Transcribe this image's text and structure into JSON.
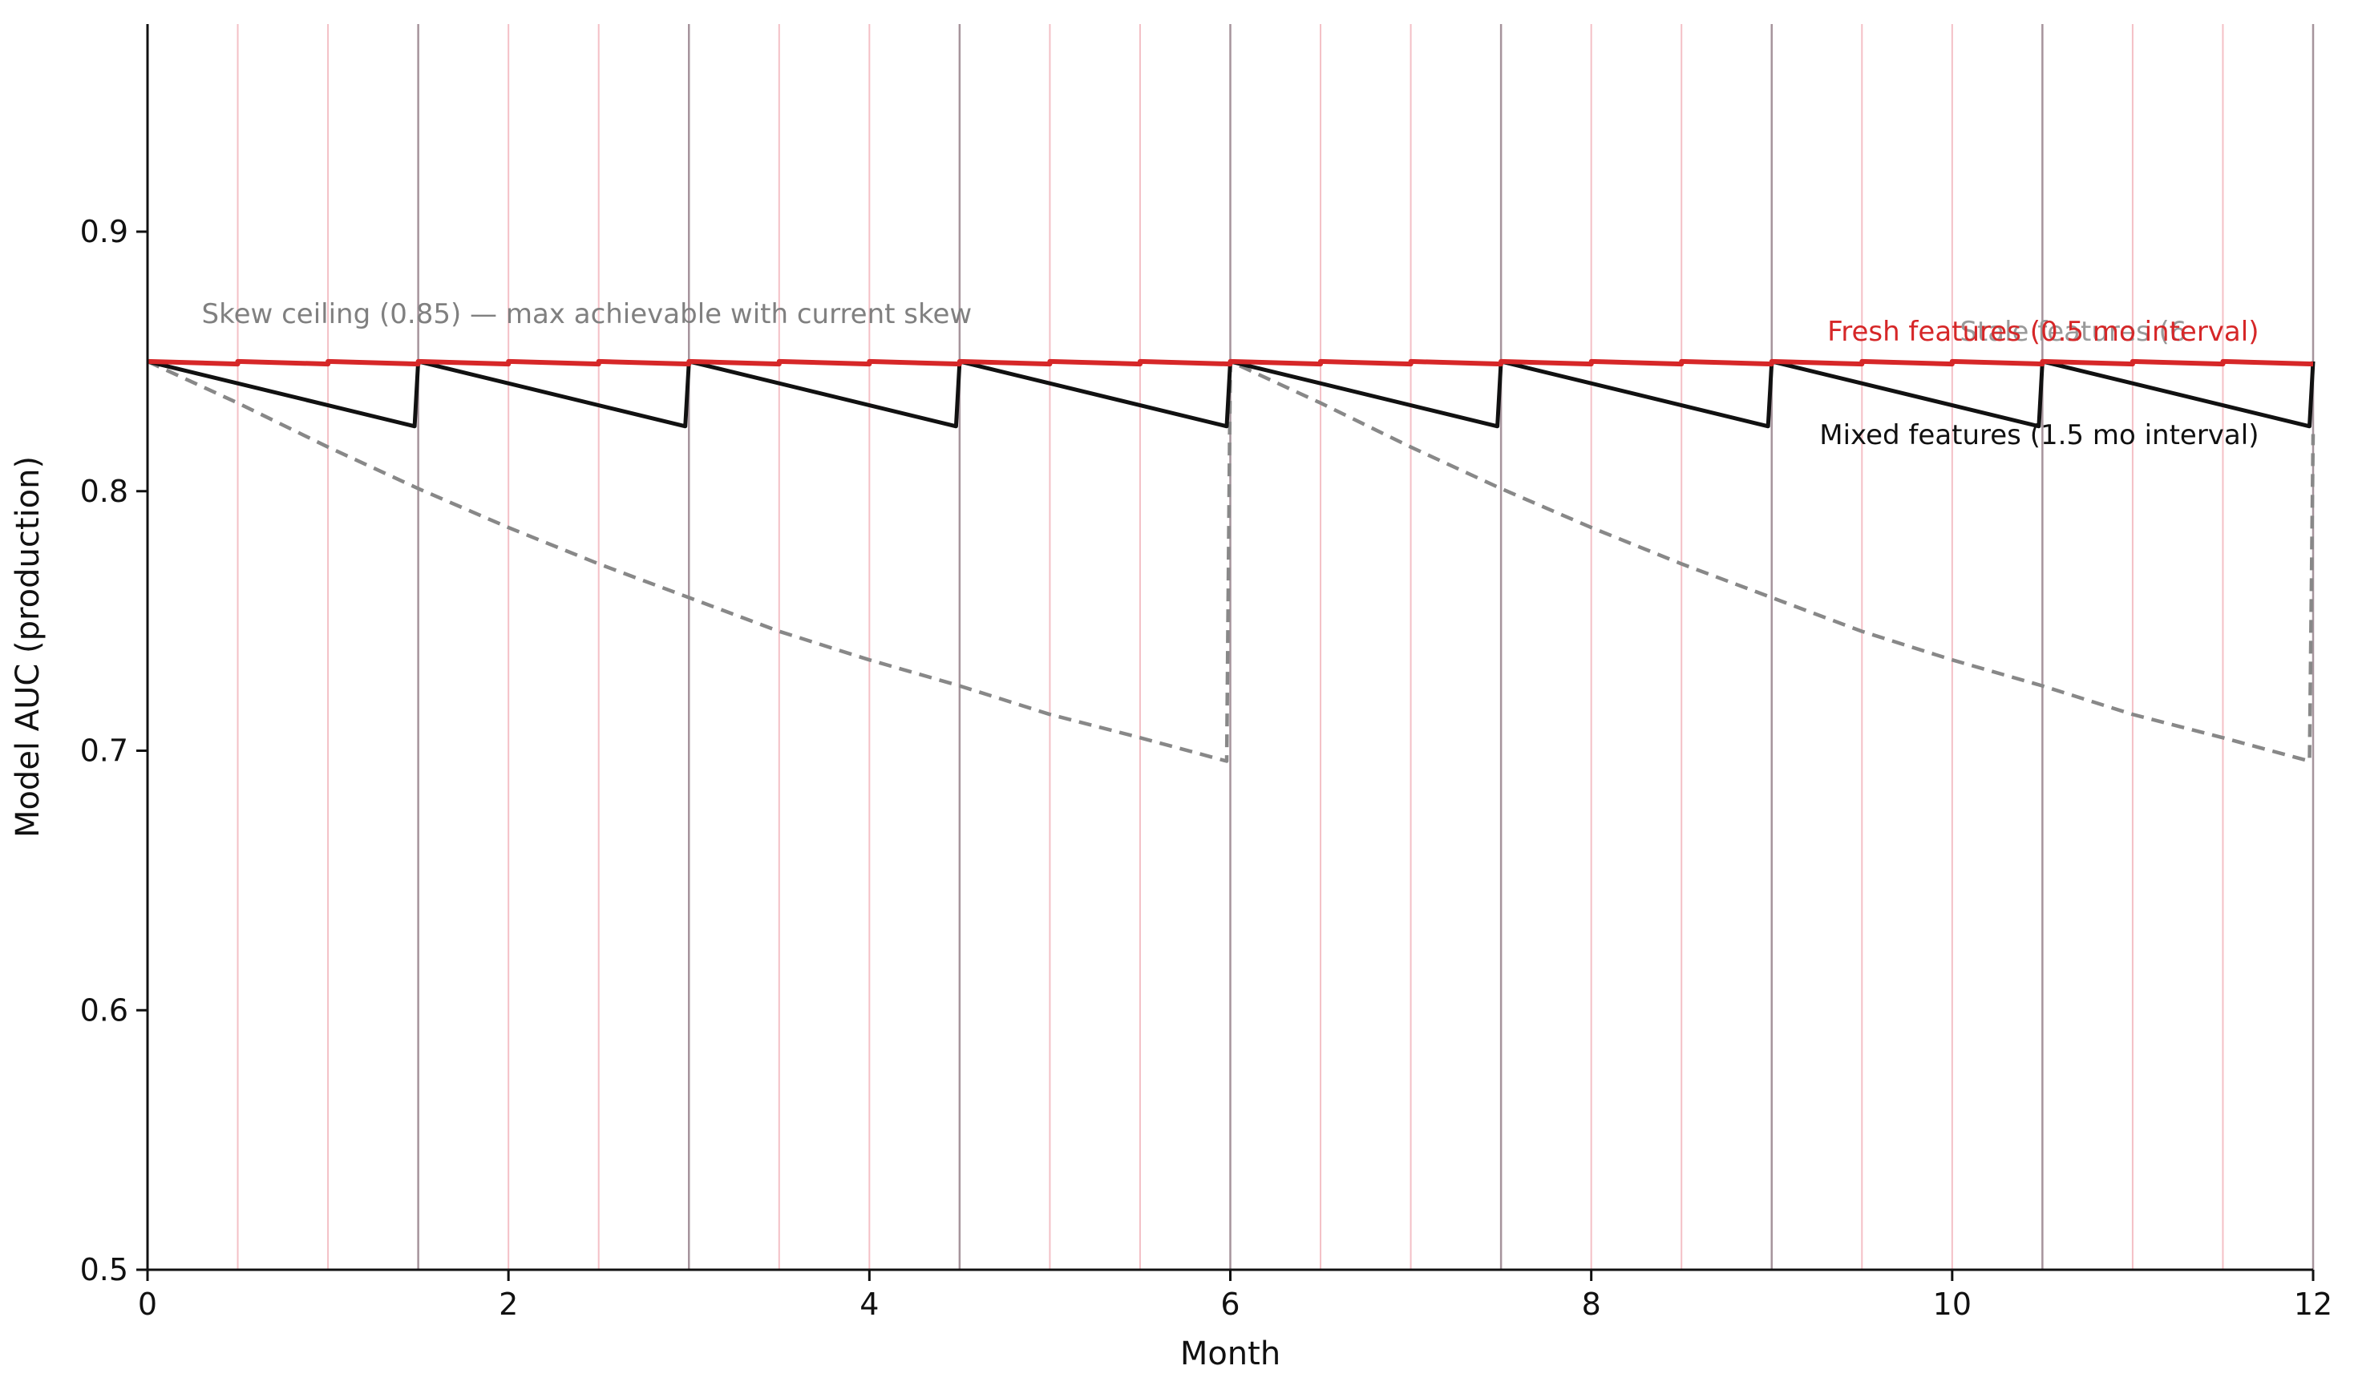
{
  "chart_data": {
    "type": "line",
    "title": "",
    "xlabel": "Month",
    "ylabel": "Model AUC (production)",
    "xlim": [
      0,
      12
    ],
    "ylim": [
      0.5,
      0.98
    ],
    "xticks": [
      0,
      2,
      4,
      6,
      8,
      10,
      12
    ],
    "yticks": [
      0.5,
      0.6,
      0.7,
      0.8,
      0.9
    ],
    "xtick_labels": [
      "0",
      "2",
      "4",
      "6",
      "8",
      "10",
      "12"
    ],
    "ytick_labels": [
      "0.5",
      "0.6",
      "0.7",
      "0.8",
      "0.9"
    ],
    "grid": false,
    "colors": {
      "fresh": "#d62728",
      "mixed": "#111111",
      "stale": "#888888",
      "fresh_retrain_line": "#f4c0c6",
      "mixed_retrain_line": "#a6949c"
    },
    "retrain_lines": {
      "fresh_every_months": 0.5,
      "mixed_every_months": 1.5
    },
    "series": [
      {
        "key": "fresh",
        "style": "solid",
        "x": [
          0,
          0.5,
          0.5,
          1.0,
          1.0,
          1.5,
          1.5,
          2.0,
          2.0,
          2.5,
          2.5,
          3.0,
          3.0,
          3.5,
          3.5,
          4.0,
          4.0,
          4.5,
          4.5,
          5.0,
          5.0,
          5.5,
          5.5,
          6.0,
          6.0,
          6.5,
          6.5,
          7.0,
          7.0,
          7.5,
          7.5,
          8.0,
          8.0,
          8.5,
          8.5,
          9.0,
          9.0,
          9.5,
          9.5,
          10.0,
          10.0,
          10.5,
          10.5,
          11.0,
          11.0,
          11.5,
          11.5,
          12.0
        ],
        "values": [
          0.85,
          0.849,
          0.85,
          0.849,
          0.85,
          0.849,
          0.85,
          0.849,
          0.85,
          0.849,
          0.85,
          0.849,
          0.85,
          0.849,
          0.85,
          0.849,
          0.85,
          0.849,
          0.85,
          0.849,
          0.85,
          0.849,
          0.85,
          0.849,
          0.85,
          0.849,
          0.85,
          0.849,
          0.85,
          0.849,
          0.85,
          0.849,
          0.85,
          0.849,
          0.85,
          0.849,
          0.85,
          0.849,
          0.85,
          0.849,
          0.85,
          0.849,
          0.85,
          0.849,
          0.85,
          0.849,
          0.85,
          0.849
        ]
      },
      {
        "key": "mixed",
        "style": "solid",
        "x": [
          0,
          1.48,
          1.5,
          2.98,
          3.0,
          4.48,
          4.5,
          5.98,
          6.0,
          7.48,
          7.5,
          8.98,
          9.0,
          10.48,
          10.5,
          11.98,
          12.0
        ],
        "values": [
          0.85,
          0.825,
          0.85,
          0.825,
          0.85,
          0.825,
          0.85,
          0.825,
          0.85,
          0.825,
          0.85,
          0.825,
          0.85,
          0.825,
          0.85,
          0.825,
          0.85
        ]
      },
      {
        "key": "stale",
        "style": "dashed",
        "x": [
          0,
          0.5,
          1.0,
          1.5,
          2.0,
          2.5,
          3.0,
          3.5,
          4.0,
          4.5,
          5.0,
          5.5,
          5.98,
          6.0,
          6.5,
          7.0,
          7.5,
          8.0,
          8.5,
          9.0,
          9.5,
          10.0,
          10.5,
          11.0,
          11.5,
          11.98,
          12.0
        ],
        "values": [
          0.85,
          0.834,
          0.817,
          0.801,
          0.786,
          0.772,
          0.759,
          0.746,
          0.735,
          0.725,
          0.714,
          0.705,
          0.696,
          0.85,
          0.834,
          0.817,
          0.801,
          0.786,
          0.772,
          0.759,
          0.746,
          0.735,
          0.725,
          0.714,
          0.705,
          0.696,
          0.822
        ]
      }
    ],
    "annotations": {
      "skew_ceiling": "Skew ceiling (0.85) — max achievable with current skew",
      "fresh_label": "Fresh features (0.5 mo interval)",
      "stale_label": "Stale features (6",
      "mixed_label": "Mixed features (1.5 mo interval)"
    }
  }
}
